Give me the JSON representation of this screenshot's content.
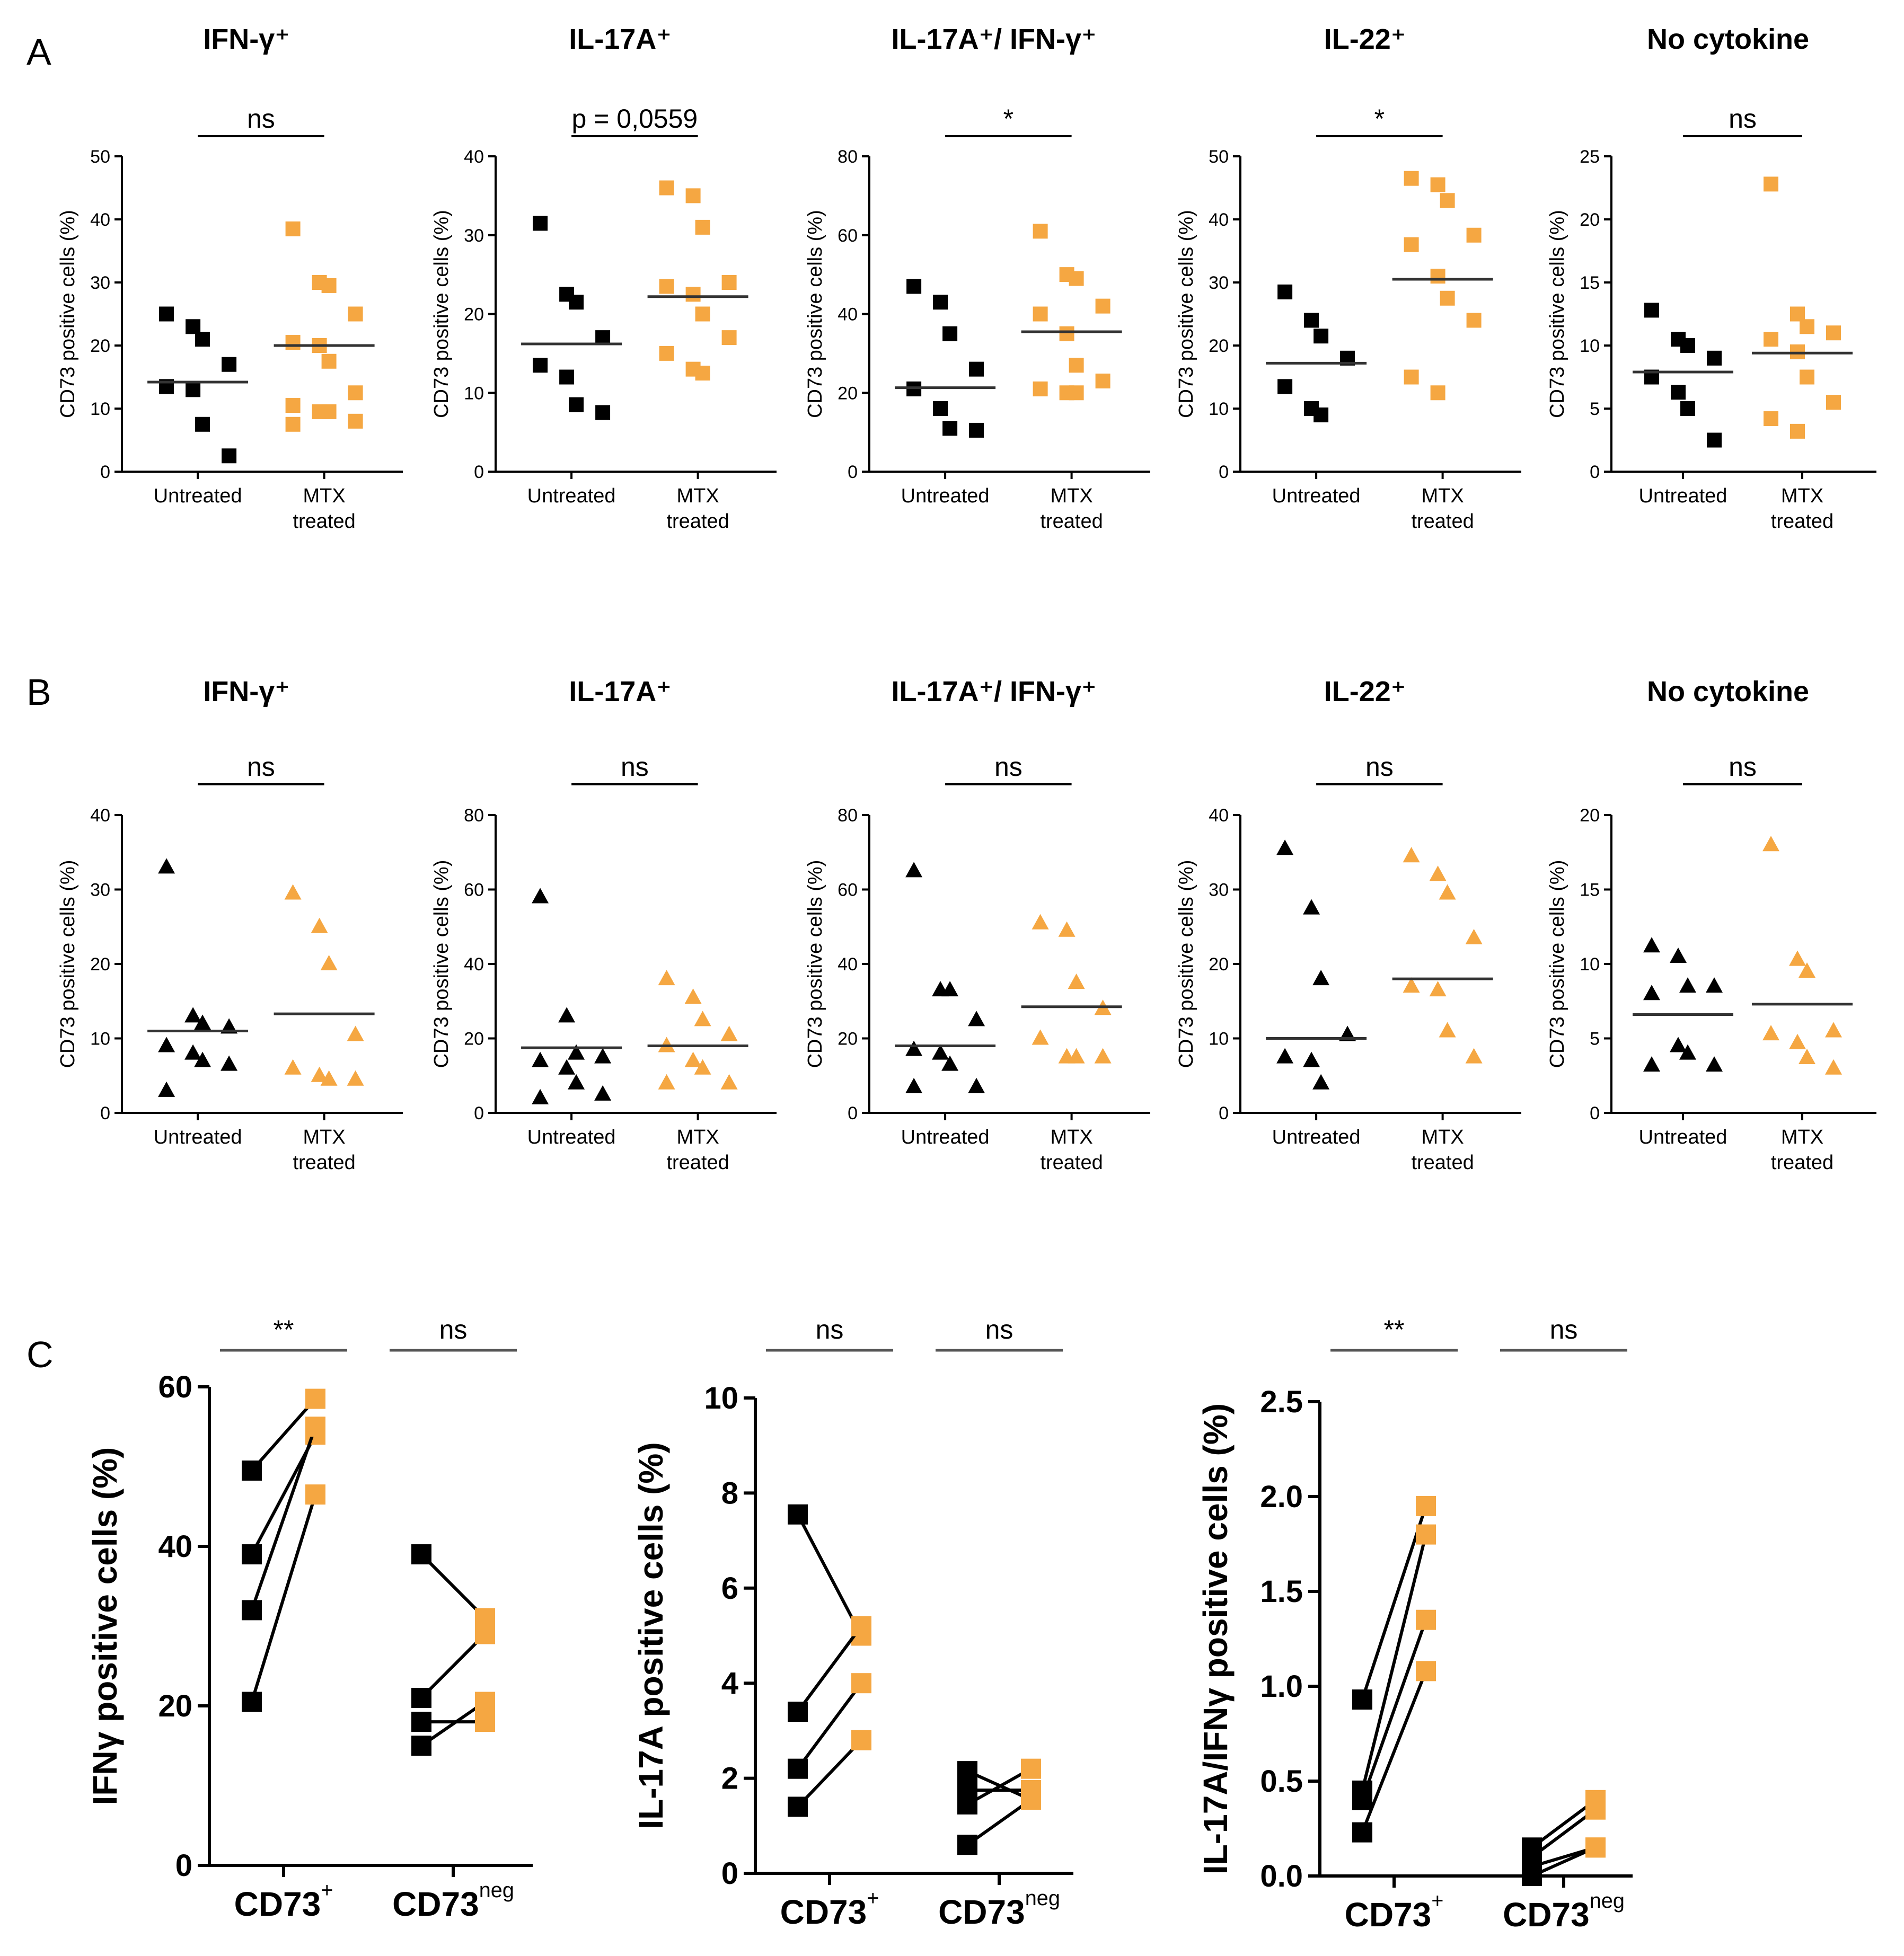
{
  "colors": {
    "untreated": "#000000",
    "mtx": "#f5a742"
  },
  "panels": {
    "A": {
      "letter": "A",
      "x_categories": [
        [
          "Untreated"
        ],
        [
          "MTX",
          "treated"
        ]
      ],
      "ylabel": "CD73 positive cells (%)"
    },
    "B": {
      "letter": "B",
      "x_categories": [
        [
          "Untreated"
        ],
        [
          "MTX",
          "treated"
        ]
      ],
      "ylabel": "CD73 positive cells (%)"
    },
    "C": {
      "letter": "C",
      "x_categories": [
        [
          "CD73",
          "+"
        ],
        [
          "CD73",
          "neg"
        ]
      ]
    }
  },
  "chart_data": [
    {
      "panel": "A",
      "type": "scatter",
      "marker": "square",
      "title": "IFN-γ⁺",
      "significance": "ns",
      "ylabel": "CD73 positive cells (%)",
      "ylim": [
        0,
        50
      ],
      "yticks": [
        0,
        10,
        20,
        30,
        40,
        50
      ],
      "series": [
        {
          "name": "Untreated",
          "values": [
            25,
            23,
            21,
            17,
            13.5,
            13,
            7.5,
            2.5
          ],
          "mean": 14.2
        },
        {
          "name": "MTX treated",
          "values": [
            38.5,
            30,
            29.5,
            25,
            20.5,
            20,
            17.5,
            12.5,
            10.5,
            9.5,
            9.5,
            8,
            7.5
          ],
          "mean": 20
        }
      ]
    },
    {
      "panel": "A",
      "type": "scatter",
      "marker": "square",
      "title": "IL-17A⁺",
      "significance": "p = 0,0559",
      "ylabel": "CD73 positive cells (%)",
      "ylim": [
        0,
        40
      ],
      "yticks": [
        0,
        10,
        20,
        30,
        40
      ],
      "series": [
        {
          "name": "Untreated",
          "values": [
            31.5,
            22.5,
            21.5,
            17,
            13.5,
            12,
            8.5,
            7.5
          ],
          "mean": 16.2
        },
        {
          "name": "MTX treated",
          "values": [
            36,
            35,
            31,
            24,
            23.5,
            22.5,
            20,
            17,
            15,
            13,
            12.5
          ],
          "mean": 22.2
        }
      ]
    },
    {
      "panel": "A",
      "type": "scatter",
      "marker": "square",
      "title": "IL-17A⁺/ IFN-γ⁺",
      "significance": "*",
      "ylabel": "CD73 positive cells (%)",
      "ylim": [
        0,
        80
      ],
      "yticks": [
        0,
        20,
        40,
        60,
        80
      ],
      "series": [
        {
          "name": "Untreated",
          "values": [
            47,
            43,
            35,
            26,
            21,
            16,
            11,
            10.5
          ],
          "mean": 21.3
        },
        {
          "name": "MTX treated",
          "values": [
            61,
            50,
            49,
            42,
            40,
            35,
            27,
            23,
            21,
            20,
            20
          ],
          "mean": 35.5
        }
      ]
    },
    {
      "panel": "A",
      "type": "scatter",
      "marker": "square",
      "title": "IL-22⁺",
      "significance": "*",
      "ylabel": "CD73 positive cells (%)",
      "ylim": [
        0,
        50
      ],
      "yticks": [
        0,
        10,
        20,
        30,
        40,
        50
      ],
      "series": [
        {
          "name": "Untreated",
          "values": [
            28.5,
            24,
            21.5,
            18,
            13.5,
            10,
            9
          ],
          "mean": 17.2
        },
        {
          "name": "MTX treated",
          "values": [
            46.5,
            45.5,
            43,
            37.5,
            36,
            31,
            27.5,
            24,
            15,
            12.5
          ],
          "mean": 30.5
        }
      ]
    },
    {
      "panel": "A",
      "type": "scatter",
      "marker": "square",
      "title": "No cytokine",
      "significance": "ns",
      "ylabel": "CD73 positive cells (%)",
      "ylim": [
        0,
        25
      ],
      "yticks": [
        0,
        5,
        10,
        15,
        20,
        25
      ],
      "series": [
        {
          "name": "Untreated",
          "values": [
            12.8,
            10.5,
            10,
            9,
            7.5,
            6.3,
            5,
            2.5
          ],
          "mean": 7.9
        },
        {
          "name": "MTX treated",
          "values": [
            22.8,
            12.5,
            11.5,
            11,
            10.5,
            9.5,
            7.5,
            5.5,
            4.2,
            3.2
          ],
          "mean": 9.4
        }
      ]
    },
    {
      "panel": "B",
      "type": "scatter",
      "marker": "triangle",
      "title": "IFN-γ⁺",
      "significance": "ns",
      "ylabel": "CD73 positive cells (%)",
      "ylim": [
        0,
        40
      ],
      "yticks": [
        0,
        10,
        20,
        30,
        40
      ],
      "series": [
        {
          "name": "Untreated",
          "values": [
            33,
            13,
            12,
            11.5,
            9,
            8,
            7,
            6.5,
            3
          ],
          "mean": 11
        },
        {
          "name": "MTX treated",
          "values": [
            29.5,
            25,
            20,
            10.5,
            6,
            5,
            4.5,
            4.5
          ],
          "mean": 13.3
        }
      ]
    },
    {
      "panel": "B",
      "type": "scatter",
      "marker": "triangle",
      "title": "IL-17A⁺",
      "significance": "ns",
      "ylabel": "CD73 positive cells (%)",
      "ylim": [
        0,
        80
      ],
      "yticks": [
        0,
        20,
        40,
        60,
        80
      ],
      "series": [
        {
          "name": "Untreated",
          "values": [
            58,
            26,
            16,
            15,
            14,
            12,
            8,
            5,
            4
          ],
          "mean": 17.5
        },
        {
          "name": "MTX treated",
          "values": [
            36,
            31,
            25,
            21,
            18,
            14,
            12,
            8,
            8
          ],
          "mean": 18
        }
      ]
    },
    {
      "panel": "B",
      "type": "scatter",
      "marker": "triangle",
      "title": "IL-17A⁺/ IFN-γ⁺",
      "significance": "ns",
      "ylabel": "CD73 positive cells (%)",
      "ylim": [
        0,
        80
      ],
      "yticks": [
        0,
        20,
        40,
        60,
        80
      ],
      "series": [
        {
          "name": "Untreated",
          "values": [
            65,
            33,
            33,
            25,
            17,
            16,
            13,
            7,
            7
          ],
          "mean": 18
        },
        {
          "name": "MTX treated",
          "values": [
            51,
            49,
            35,
            28,
            20,
            15,
            15,
            15
          ],
          "mean": 28.5
        }
      ]
    },
    {
      "panel": "B",
      "type": "scatter",
      "marker": "triangle",
      "title": "IL-22⁺",
      "significance": "ns",
      "ylabel": "CD73 positive cells (%)",
      "ylim": [
        0,
        40
      ],
      "yticks": [
        0,
        10,
        20,
        30,
        40
      ],
      "series": [
        {
          "name": "Untreated",
          "values": [
            35.5,
            27.5,
            18,
            10.5,
            7.5,
            7,
            4
          ],
          "mean": 10
        },
        {
          "name": "MTX treated",
          "values": [
            34.5,
            32,
            29.5,
            23.5,
            17,
            16.5,
            11,
            7.5
          ],
          "mean": 18
        }
      ]
    },
    {
      "panel": "B",
      "type": "scatter",
      "marker": "triangle",
      "title": "No cytokine",
      "significance": "ns",
      "ylabel": "CD73 positive cells (%)",
      "ylim": [
        0,
        20
      ],
      "yticks": [
        0,
        5,
        10,
        15,
        20
      ],
      "series": [
        {
          "name": "Untreated",
          "values": [
            11.2,
            10.5,
            8.5,
            8.5,
            8,
            4.5,
            4,
            3.2,
            3.2
          ],
          "mean": 6.6
        },
        {
          "name": "MTX treated",
          "values": [
            18,
            10.3,
            9.5,
            5.5,
            5.3,
            4.7,
            3.7,
            3
          ],
          "mean": 7.3
        }
      ]
    },
    {
      "panel": "C",
      "type": "line",
      "title": "",
      "significance": [
        "**",
        "ns"
      ],
      "ylabel": "IFNγ positive cells (%)",
      "ylim": [
        0,
        60
      ],
      "yticks": [
        "0",
        "20",
        "40",
        "60"
      ],
      "groups": [
        {
          "name": "CD73+",
          "pairs": [
            [
              49.5,
              58.5
            ],
            [
              39,
              54
            ],
            [
              32,
              55
            ],
            [
              20.5,
              46.5
            ]
          ]
        },
        {
          "name": "CD73neg",
          "pairs": [
            [
              39,
              31
            ],
            [
              21,
              29
            ],
            [
              18,
              18
            ],
            [
              15,
              20.5
            ]
          ]
        }
      ]
    },
    {
      "panel": "C",
      "type": "line",
      "title": "",
      "significance": [
        "ns",
        "ns"
      ],
      "ylabel": "IL-17A positive cells (%)",
      "ylim": [
        0,
        10
      ],
      "yticks": [
        "0",
        "2",
        "4",
        "6",
        "8",
        "10"
      ],
      "groups": [
        {
          "name": "CD73+",
          "pairs": [
            [
              7.55,
              5
            ],
            [
              3.4,
              5.2
            ],
            [
              2.2,
              4
            ],
            [
              1.4,
              2.8
            ]
          ]
        },
        {
          "name": "CD73neg",
          "pairs": [
            [
              2.15,
              1.55
            ],
            [
              1.75,
              1.75
            ],
            [
              1.45,
              2.2
            ],
            [
              0.6,
              1.55
            ]
          ]
        }
      ]
    },
    {
      "panel": "C",
      "type": "line",
      "title": "",
      "significance": [
        "**",
        "ns"
      ],
      "ylabel": "IL-17A/IFNγ positive cells (%)",
      "ylim": [
        0,
        2.5
      ],
      "yticks": [
        "0.0",
        "0.5",
        "1.0",
        "1.5",
        "2.0",
        "2.5"
      ],
      "groups": [
        {
          "name": "CD73+",
          "pairs": [
            [
              0.93,
              1.95
            ],
            [
              0.45,
              1.8
            ],
            [
              0.4,
              1.35
            ],
            [
              0.23,
              1.08
            ]
          ]
        },
        {
          "name": "CD73neg",
          "pairs": [
            [
              0.15,
              0.4
            ],
            [
              0.1,
              0.35
            ],
            [
              0.05,
              0.15
            ],
            [
              0.0,
              0.15
            ]
          ]
        }
      ]
    }
  ]
}
